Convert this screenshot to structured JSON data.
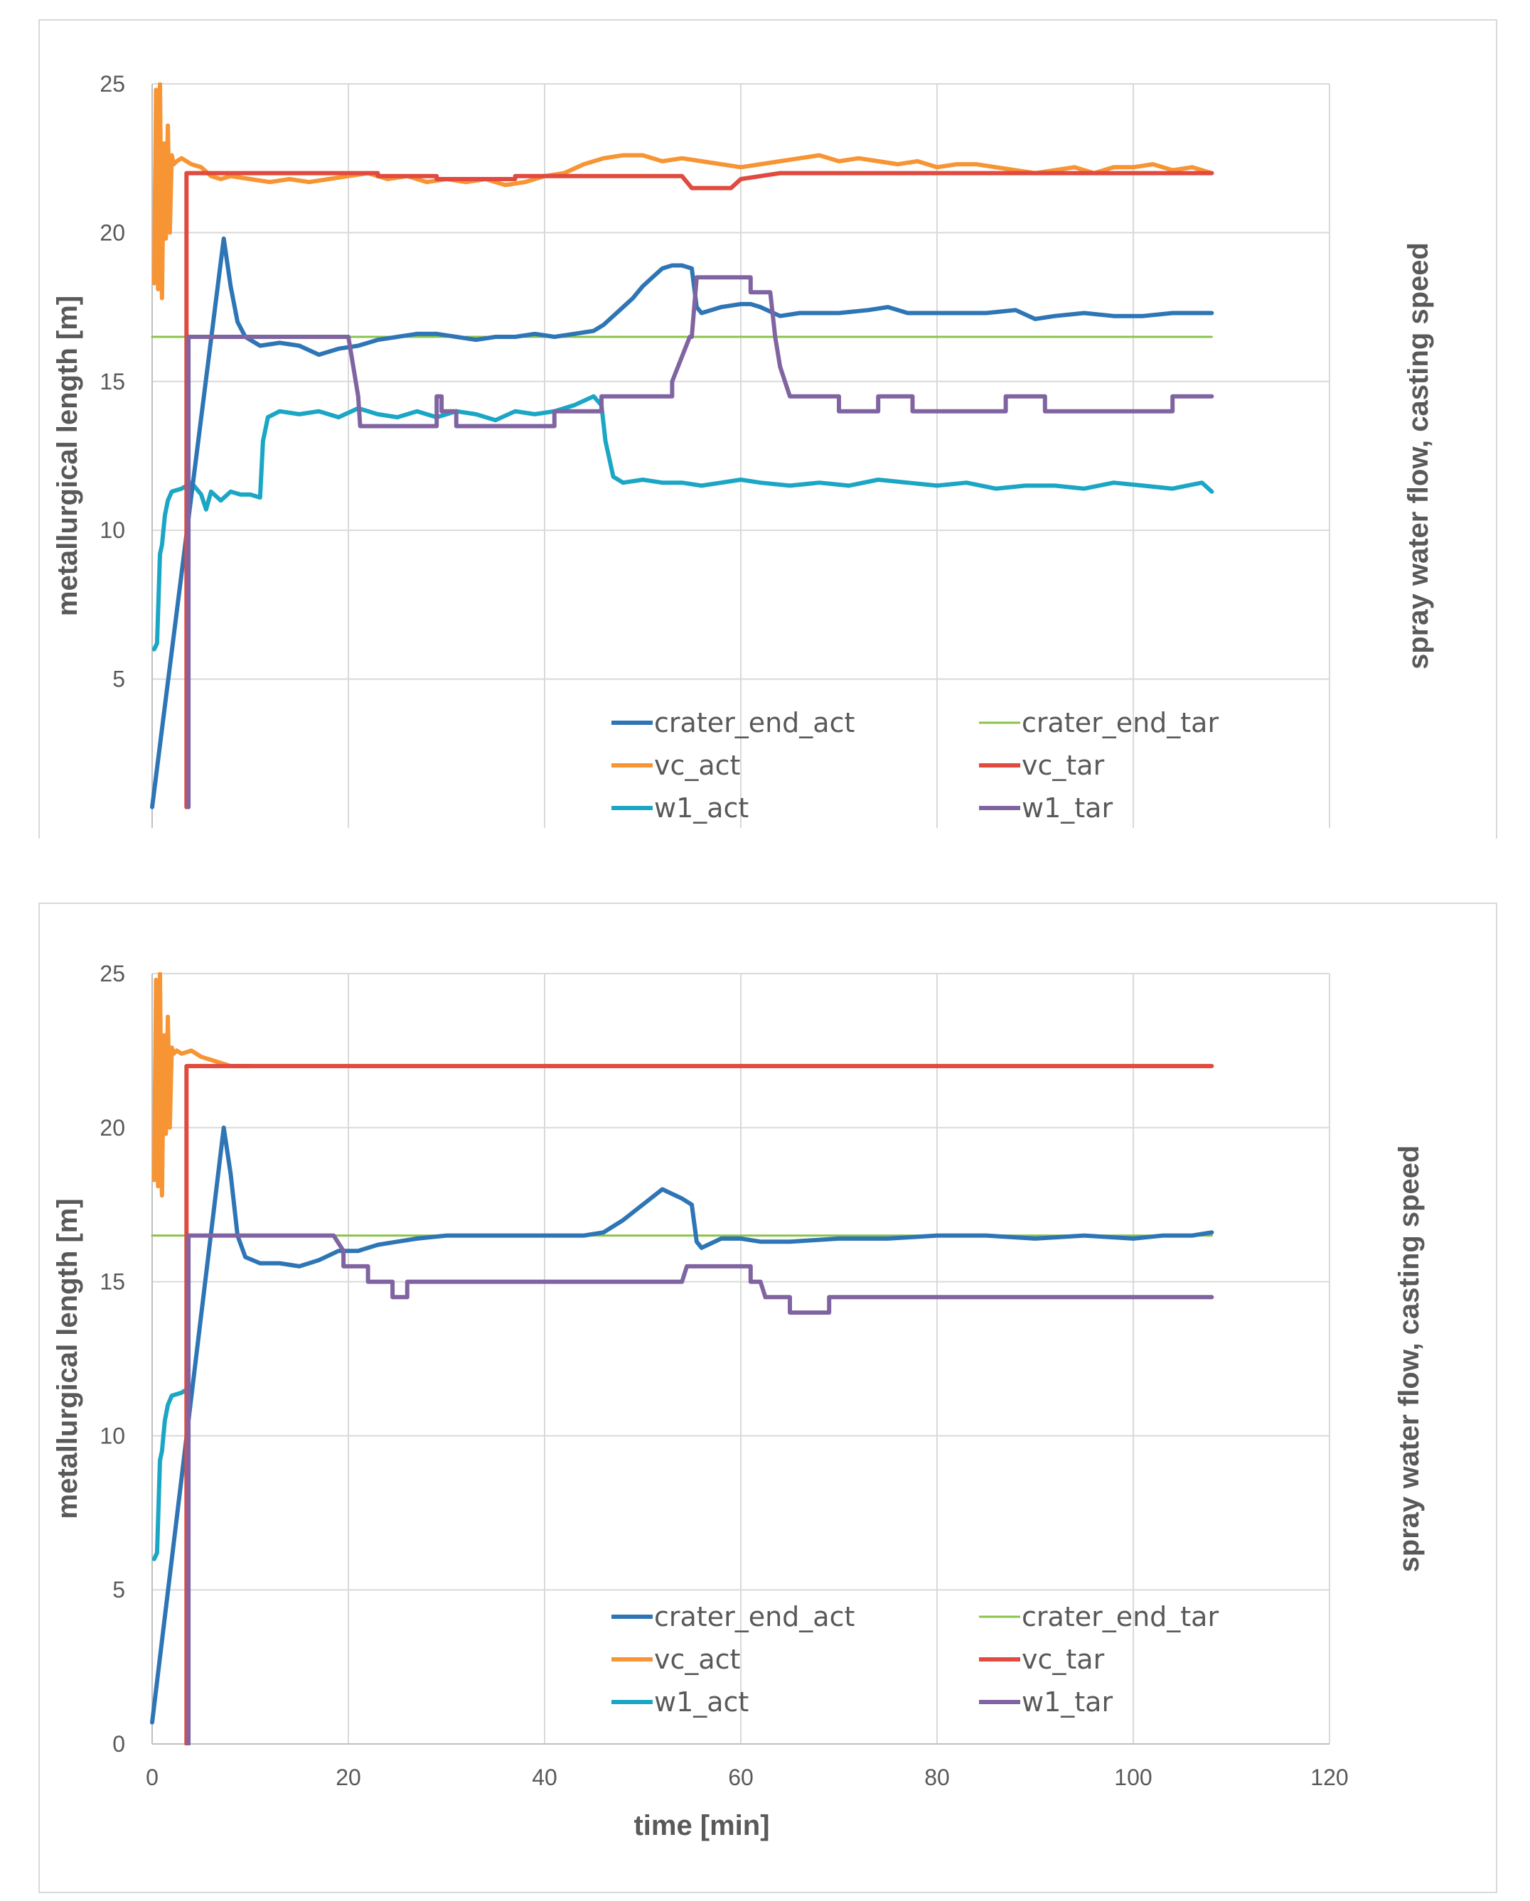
{
  "chart_data": [
    {
      "type": "line",
      "title": "",
      "xlabel": "",
      "ylabel": "metallurgical length [m]",
      "y2label": "spray water flow, casting speed",
      "xlim": [
        0,
        120
      ],
      "ylim": [
        0,
        25
      ],
      "x_ticks": [],
      "y_ticks": [
        "5",
        "10",
        "15",
        "20",
        "25"
      ],
      "grid": true,
      "legend_position": "bottom-right",
      "series": [
        {
          "name": "crater_end_act",
          "color": "#2E75B6",
          "x": [
            0,
            7.3,
            8,
            8.7,
            9.5,
            11,
            13,
            15,
            17,
            19,
            21,
            23,
            25,
            27,
            29,
            31,
            33,
            35,
            37,
            39,
            41,
            43,
            45,
            46,
            47,
            48,
            49,
            50,
            51,
            52,
            53,
            54,
            55,
            55.5,
            56,
            58,
            60,
            61,
            62,
            64,
            66,
            70,
            73,
            75,
            77,
            80,
            85,
            88,
            90,
            92,
            95,
            98,
            101,
            104,
            108
          ],
          "y": [
            0.7,
            19.8,
            18.2,
            17,
            16.5,
            16.2,
            16.3,
            16.2,
            15.9,
            16.1,
            16.2,
            16.4,
            16.5,
            16.6,
            16.6,
            16.5,
            16.4,
            16.5,
            16.5,
            16.6,
            16.5,
            16.6,
            16.7,
            16.9,
            17.2,
            17.5,
            17.8,
            18.2,
            18.5,
            18.8,
            18.9,
            18.9,
            18.8,
            17.5,
            17.3,
            17.5,
            17.6,
            17.6,
            17.5,
            17.2,
            17.3,
            17.3,
            17.4,
            17.5,
            17.3,
            17.3,
            17.3,
            17.4,
            17.1,
            17.2,
            17.3,
            17.2,
            17.2,
            17.3,
            17.3
          ]
        },
        {
          "name": "crater_end_tar",
          "color": "#8BC34A",
          "x": [
            0,
            108
          ],
          "y": [
            16.5,
            16.5
          ]
        },
        {
          "name": "vc_act",
          "color": "#F79433",
          "x": [
            0.2,
            0.4,
            0.6,
            0.8,
            1.0,
            1.2,
            1.4,
            1.6,
            1.8,
            2.0,
            2.2,
            2.5,
            3,
            3.5,
            4,
            5,
            6,
            7,
            8,
            10,
            12,
            14,
            16,
            18,
            20,
            22,
            24,
            26,
            28,
            30,
            32,
            34,
            36,
            38,
            40,
            42,
            44,
            46,
            48,
            50,
            52,
            54,
            56,
            58,
            60,
            62,
            64,
            66,
            68,
            70,
            72,
            74,
            76,
            78,
            80,
            82,
            84,
            86,
            88,
            90,
            92,
            94,
            96,
            98,
            100,
            102,
            104,
            106,
            108
          ],
          "y": [
            18.3,
            24.8,
            18.1,
            25.0,
            17.8,
            23.0,
            19.8,
            23.6,
            20.0,
            22.6,
            22.3,
            22.4,
            22.5,
            22.4,
            22.3,
            22.2,
            21.9,
            21.8,
            21.9,
            21.8,
            21.7,
            21.8,
            21.7,
            21.8,
            21.9,
            22.0,
            21.8,
            21.9,
            21.7,
            21.8,
            21.7,
            21.8,
            21.6,
            21.7,
            21.9,
            22.0,
            22.3,
            22.5,
            22.6,
            22.6,
            22.4,
            22.5,
            22.4,
            22.3,
            22.2,
            22.3,
            22.4,
            22.5,
            22.6,
            22.4,
            22.5,
            22.4,
            22.3,
            22.4,
            22.2,
            22.3,
            22.3,
            22.2,
            22.1,
            22.0,
            22.1,
            22.2,
            22.0,
            22.2,
            22.2,
            22.3,
            22.1,
            22.2,
            22.0
          ]
        },
        {
          "name": "vc_tar",
          "color": "#E04A3F",
          "x": [
            3.5,
            3.5,
            23,
            23,
            29,
            29,
            37,
            37,
            54,
            55,
            59,
            60,
            64,
            108
          ],
          "y": [
            0.7,
            22.0,
            22.0,
            21.9,
            21.9,
            21.8,
            21.8,
            21.9,
            21.9,
            21.5,
            21.5,
            21.8,
            22.0,
            22.0
          ]
        },
        {
          "name": "w1_act",
          "color": "#1AA6C4",
          "x": [
            0.2,
            0.5,
            0.8,
            1.0,
            1.3,
            1.6,
            2,
            3,
            4,
            5,
            5.5,
            6,
            7,
            8,
            9,
            10,
            11,
            11.3,
            11.8,
            13,
            15,
            17,
            19,
            21,
            23,
            25,
            27,
            29,
            31,
            33,
            35,
            37,
            39,
            41,
            43,
            45,
            45.8,
            46.2,
            47,
            48,
            50,
            52,
            54,
            56,
            58,
            60,
            62,
            65,
            68,
            71,
            74,
            77,
            80,
            83,
            86,
            89,
            92,
            95,
            98,
            101,
            104,
            107,
            108
          ],
          "y": [
            6.0,
            6.2,
            9.2,
            9.5,
            10.5,
            11.0,
            11.3,
            11.4,
            11.6,
            11.2,
            10.7,
            11.3,
            11.0,
            11.3,
            11.2,
            11.2,
            11.1,
            13.0,
            13.8,
            14.0,
            13.9,
            14.0,
            13.8,
            14.1,
            13.9,
            13.8,
            14.0,
            13.8,
            14.0,
            13.9,
            13.7,
            14.0,
            13.9,
            14.0,
            14.2,
            14.5,
            14.2,
            13.0,
            11.8,
            11.6,
            11.7,
            11.6,
            11.6,
            11.5,
            11.6,
            11.7,
            11.6,
            11.5,
            11.6,
            11.5,
            11.7,
            11.6,
            11.5,
            11.6,
            11.4,
            11.5,
            11.5,
            11.4,
            11.6,
            11.5,
            11.4,
            11.6,
            11.3
          ]
        },
        {
          "name": "w1_tar",
          "color": "#8064A2",
          "x": [
            3.7,
            3.7,
            20,
            21,
            21.2,
            29,
            29,
            29.5,
            29.5,
            31,
            31,
            41,
            41,
            45.8,
            45.8,
            53,
            53,
            54.8,
            55,
            55.5,
            55.5,
            61,
            61,
            63,
            63.5,
            64,
            65,
            70,
            70,
            74,
            74,
            77.5,
            77.5,
            87,
            87,
            91,
            91,
            104,
            104,
            108
          ],
          "y": [
            0.7,
            16.5,
            16.5,
            14.5,
            13.5,
            13.5,
            14.5,
            14.5,
            14.0,
            14.0,
            13.5,
            13.5,
            14.0,
            14.0,
            14.5,
            14.5,
            15.0,
            16.5,
            16.5,
            18.5,
            18.5,
            18.5,
            18.0,
            18.0,
            16.5,
            15.5,
            14.5,
            14.5,
            14.0,
            14.0,
            14.5,
            14.5,
            14.0,
            14.0,
            14.5,
            14.5,
            14.0,
            14.0,
            14.5,
            14.5
          ]
        }
      ]
    },
    {
      "type": "line",
      "title": "",
      "xlabel": "time [min]",
      "ylabel": "metallurgical length [m]",
      "y2label": "spray water flow, casting speed",
      "xlim": [
        0,
        120
      ],
      "ylim": [
        0,
        25
      ],
      "x_ticks": [
        "0",
        "20",
        "40",
        "60",
        "80",
        "100",
        "120"
      ],
      "y_ticks": [
        "0",
        "5",
        "10",
        "15",
        "20",
        "25"
      ],
      "grid": true,
      "legend_position": "bottom-right",
      "series": [
        {
          "name": "crater_end_act",
          "color": "#2E75B6",
          "x": [
            0,
            7.3,
            8,
            8.7,
            9.5,
            11,
            13,
            15,
            17,
            19,
            21,
            23,
            25,
            27,
            30,
            35,
            40,
            44,
            46,
            48,
            50,
            52,
            54,
            55,
            55.5,
            56,
            58,
            60,
            62,
            65,
            70,
            75,
            80,
            85,
            90,
            95,
            100,
            103,
            106,
            108
          ],
          "y": [
            0.7,
            20.0,
            18.5,
            16.5,
            15.8,
            15.6,
            15.6,
            15.5,
            15.7,
            16.0,
            16.0,
            16.2,
            16.3,
            16.4,
            16.5,
            16.5,
            16.5,
            16.5,
            16.6,
            17.0,
            17.5,
            18.0,
            17.7,
            17.5,
            16.3,
            16.1,
            16.4,
            16.4,
            16.3,
            16.3,
            16.4,
            16.4,
            16.5,
            16.5,
            16.4,
            16.5,
            16.4,
            16.5,
            16.5,
            16.6
          ]
        },
        {
          "name": "crater_end_tar",
          "color": "#8BC34A",
          "x": [
            0,
            108
          ],
          "y": [
            16.5,
            16.5
          ]
        },
        {
          "name": "vc_act",
          "color": "#F79433",
          "x": [
            0.2,
            0.4,
            0.6,
            0.8,
            1.0,
            1.2,
            1.4,
            1.6,
            1.8,
            2.0,
            2.2,
            2.5,
            3,
            4,
            5,
            6,
            7,
            8,
            9,
            10
          ],
          "y": [
            18.3,
            24.8,
            18.1,
            25.0,
            17.8,
            23.0,
            19.8,
            23.6,
            20.0,
            22.6,
            22.4,
            22.5,
            22.4,
            22.5,
            22.3,
            22.2,
            22.1,
            22.0,
            22.0,
            22.0
          ]
        },
        {
          "name": "vc_tar",
          "color": "#E04A3F",
          "x": [
            3.5,
            3.5,
            108
          ],
          "y": [
            0,
            22.0,
            22.0
          ]
        },
        {
          "name": "w1_act",
          "color": "#1AA6C4",
          "x": [
            0.2,
            0.5,
            0.8,
            1.0,
            1.3,
            1.6,
            2,
            3,
            4
          ],
          "y": [
            6.0,
            6.2,
            9.2,
            9.5,
            10.5,
            11.0,
            11.3,
            11.4,
            11.6
          ]
        },
        {
          "name": "w1_tar",
          "color": "#8064A2",
          "x": [
            3.7,
            3.7,
            18.5,
            19.5,
            19.5,
            22,
            22,
            24.5,
            24.5,
            26,
            26,
            54,
            54.5,
            61,
            61,
            62,
            62.5,
            65,
            65,
            69,
            69,
            108
          ],
          "y": [
            0,
            16.5,
            16.5,
            16.0,
            15.5,
            15.5,
            15.0,
            15.0,
            14.5,
            14.5,
            15.0,
            15.0,
            15.5,
            15.5,
            15.0,
            15.0,
            14.5,
            14.5,
            14.0,
            14.0,
            14.5,
            14.5
          ]
        }
      ]
    }
  ]
}
